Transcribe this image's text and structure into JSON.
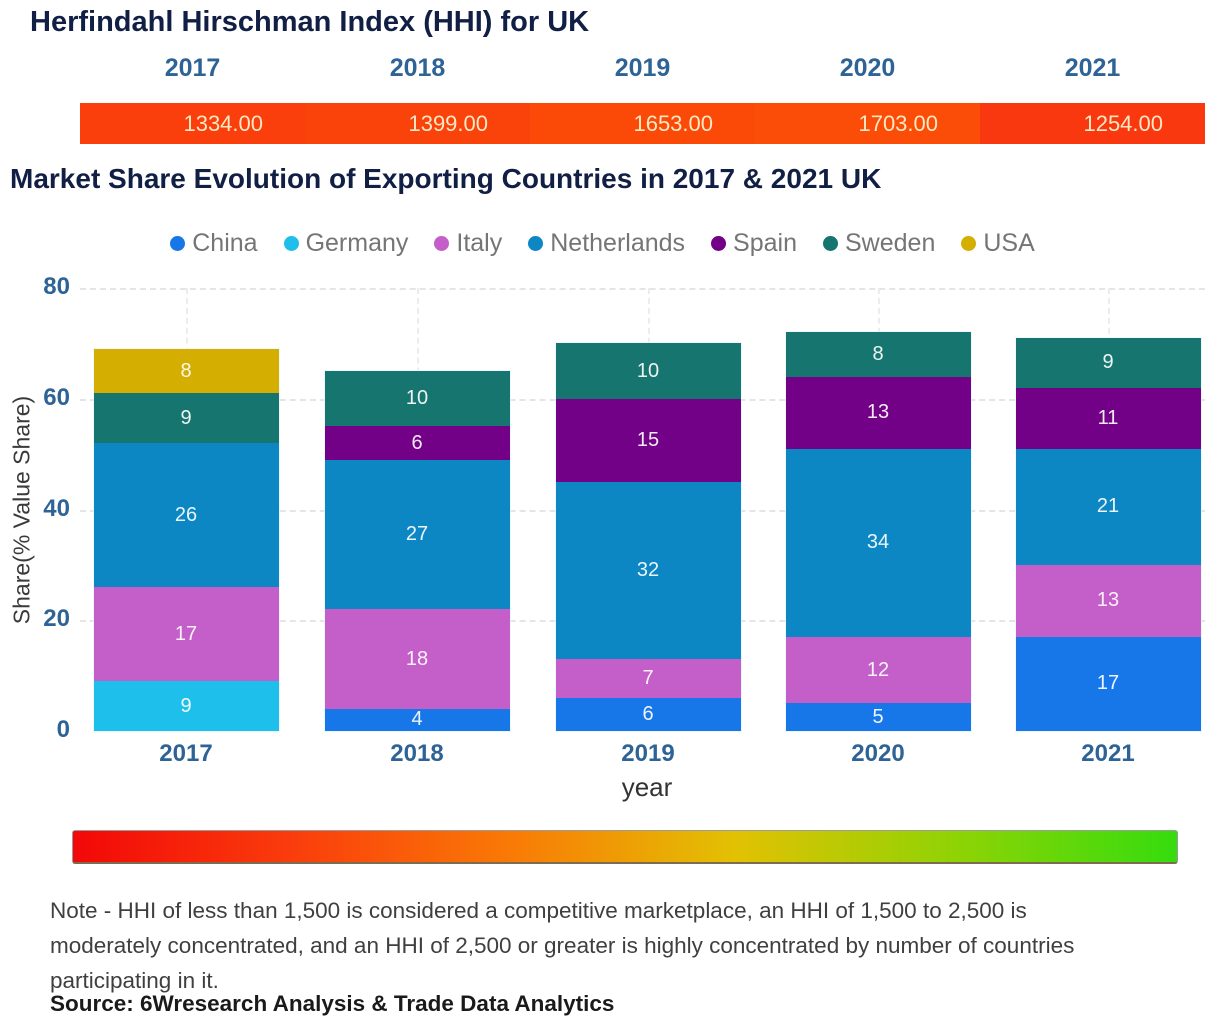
{
  "title": "Herfindahl Hirschman Index (HHI) for UK",
  "hhi_strip": {
    "segments": [
      {
        "year": "2017",
        "value": "1334.00",
        "color": "#FA3F0C"
      },
      {
        "year": "2018",
        "value": "1399.00",
        "color": "#FA420B"
      },
      {
        "year": "2019",
        "value": "1653.00",
        "color": "#FB4A08"
      },
      {
        "year": "2020",
        "value": "1703.00",
        "color": "#FB4D07"
      },
      {
        "year": "2021",
        "value": "1254.00",
        "color": "#F93810"
      }
    ]
  },
  "section_title": "Market Share Evolution of Exporting Countries in 2017 & 2021 UK",
  "legend": {
    "items": [
      {
        "label": "China",
        "color": "#1877E8"
      },
      {
        "label": "Germany",
        "color": "#1FBFEC"
      },
      {
        "label": "Italy",
        "color": "#C45FC9"
      },
      {
        "label": "Netherlands",
        "color": "#0C87C4"
      },
      {
        "label": "Spain",
        "color": "#720187"
      },
      {
        "label": "Sweden",
        "color": "#17756F"
      },
      {
        "label": "USA",
        "color": "#D4AE01"
      }
    ]
  },
  "chart_data": {
    "type": "bar",
    "stacked": true,
    "categories": [
      "2017",
      "2018",
      "2019",
      "2020",
      "2021"
    ],
    "series": [
      {
        "name": "China",
        "color": "#1877E8",
        "values": [
          0,
          4,
          6,
          5,
          17
        ]
      },
      {
        "name": "Germany",
        "color": "#1FBFEC",
        "values": [
          9,
          0,
          0,
          0,
          0
        ]
      },
      {
        "name": "Italy",
        "color": "#C45FC9",
        "values": [
          17,
          18,
          7,
          12,
          13
        ]
      },
      {
        "name": "Netherlands",
        "color": "#0C87C4",
        "values": [
          26,
          27,
          32,
          34,
          21
        ]
      },
      {
        "name": "Spain",
        "color": "#720187",
        "values": [
          0,
          6,
          15,
          13,
          11
        ]
      },
      {
        "name": "Sweden",
        "color": "#17756F",
        "values": [
          9,
          10,
          10,
          8,
          9
        ]
      },
      {
        "name": "USA",
        "color": "#D4AE01",
        "values": [
          8,
          0,
          0,
          0,
          0
        ]
      }
    ],
    "xlabel": "year",
    "ylabel": "Share(% Value Share)",
    "ylim": [
      0,
      80
    ],
    "yticks": [
      0,
      20,
      40,
      60,
      80
    ],
    "legend_position": "top",
    "grid": true
  },
  "gradient_legend": {
    "stops": [
      "#F20808",
      "#FA3D0C",
      "#F97B06",
      "#E2C103",
      "#8FD305",
      "#35DC0E"
    ]
  },
  "note": {
    "lines": [
      "Note - HHI of less than 1,500 is considered a competitive marketplace, an HHI of 1,500 to 2,500 is",
      "moderately concentrated, and an HHI of 2,500 or greater is highly concentrated by number of countries",
      "participating in it."
    ],
    "source": "Source: 6Wresearch Analysis & Trade Data Analytics"
  }
}
